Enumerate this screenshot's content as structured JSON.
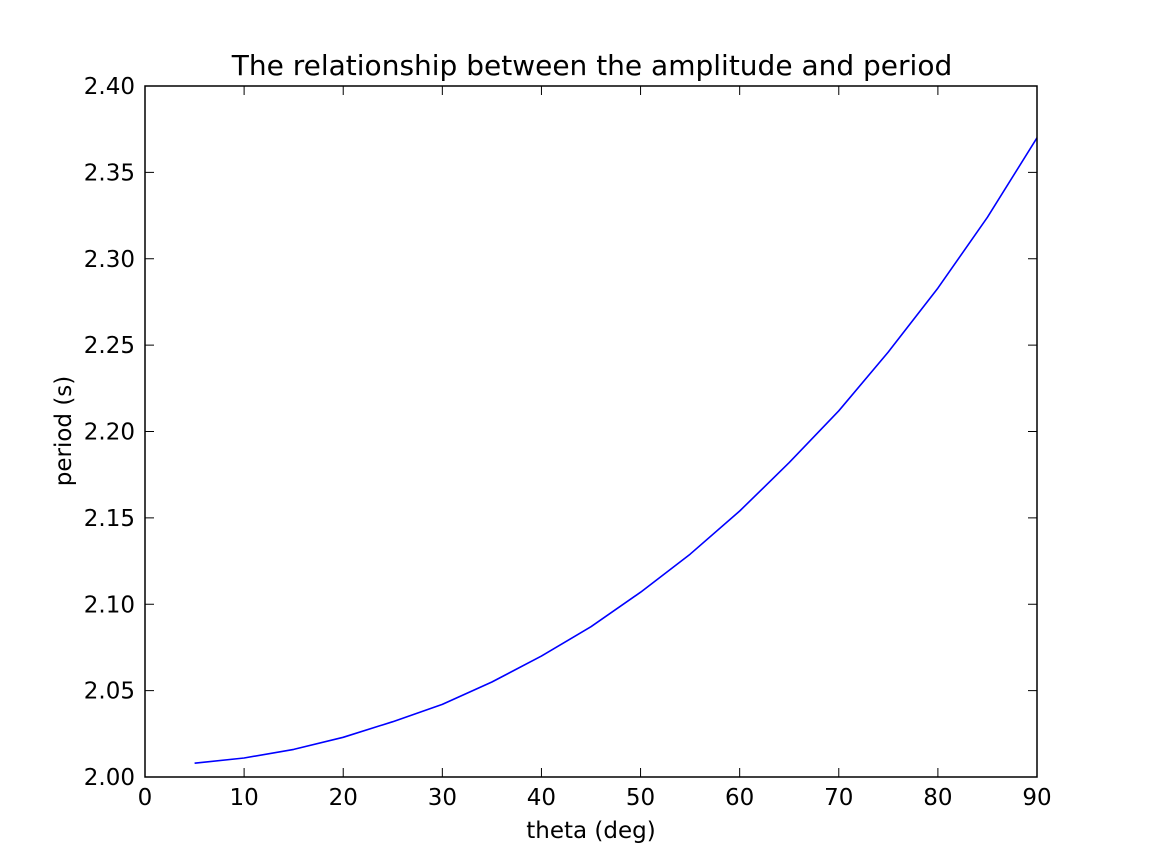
{
  "chart_data": {
    "type": "line",
    "title": "The relationship between the amplitude and period",
    "xlabel": "theta (deg)",
    "ylabel": "period (s)",
    "xlim": [
      0,
      90
    ],
    "ylim": [
      2.0,
      2.4
    ],
    "xticks": [
      0,
      10,
      20,
      30,
      40,
      50,
      60,
      70,
      80,
      90
    ],
    "xtick_labels": [
      "0",
      "10",
      "20",
      "30",
      "40",
      "50",
      "60",
      "70",
      "80",
      "90"
    ],
    "yticks": [
      2.0,
      2.05,
      2.1,
      2.15,
      2.2,
      2.25,
      2.3,
      2.35,
      2.4
    ],
    "ytick_labels": [
      "2.00",
      "2.05",
      "2.10",
      "2.15",
      "2.20",
      "2.25",
      "2.30",
      "2.35",
      "2.40"
    ],
    "grid": false,
    "series": [
      {
        "color": "#0000ff",
        "x": [
          5,
          10,
          15,
          20,
          25,
          30,
          35,
          40,
          45,
          50,
          55,
          60,
          65,
          70,
          75,
          80,
          85,
          90
        ],
        "y": [
          2.008,
          2.011,
          2.016,
          2.023,
          2.032,
          2.042,
          2.055,
          2.07,
          2.087,
          2.107,
          2.129,
          2.154,
          2.182,
          2.212,
          2.246,
          2.283,
          2.324,
          2.37
        ]
      }
    ]
  }
}
